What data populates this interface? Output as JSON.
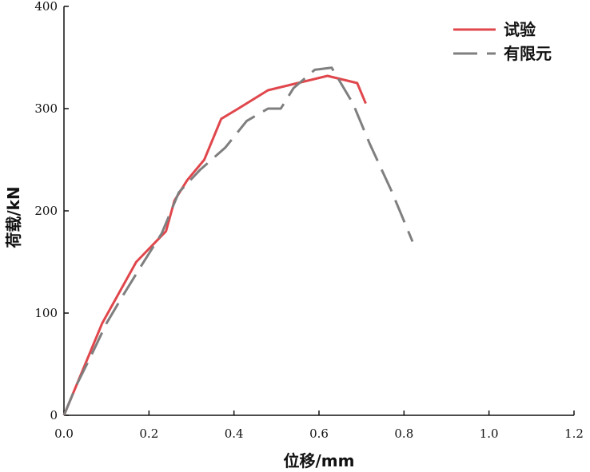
{
  "chart_data": {
    "type": "line",
    "xlabel": "位移/mm",
    "ylabel": "荷载/kN",
    "xlim": [
      0,
      1.2
    ],
    "ylim": [
      0,
      400
    ],
    "xticks": [
      0.0,
      0.2,
      0.4,
      0.6,
      0.8,
      1.0,
      1.2
    ],
    "xtick_labels": [
      "0.0",
      "0.2",
      "0.4",
      "0.6",
      "0.8",
      "1.0",
      "1.2"
    ],
    "yticks": [
      0,
      100,
      200,
      300,
      400
    ],
    "ytick_labels": [
      "0",
      "100",
      "200",
      "300",
      "400"
    ],
    "grid": false,
    "legend_position": "top-right",
    "series": [
      {
        "name": "试验",
        "color": "#e0474c",
        "style": "solid",
        "x": [
          0.0,
          0.05,
          0.09,
          0.17,
          0.24,
          0.26,
          0.29,
          0.33,
          0.37,
          0.41,
          0.48,
          0.55,
          0.62,
          0.69,
          0.71
        ],
        "y": [
          0,
          50,
          90,
          150,
          180,
          210,
          230,
          250,
          290,
          300,
          318,
          325,
          332,
          325,
          305
        ]
      },
      {
        "name": "有限元",
        "color": "#7f7f7f",
        "style": "dashed",
        "x": [
          0.0,
          0.03,
          0.06,
          0.1,
          0.14,
          0.18,
          0.23,
          0.27,
          0.32,
          0.38,
          0.43,
          0.48,
          0.51,
          0.54,
          0.59,
          0.63,
          0.68,
          0.72,
          0.77,
          0.82
        ],
        "y": [
          0,
          30,
          55,
          90,
          118,
          145,
          178,
          218,
          240,
          262,
          288,
          300,
          300,
          320,
          338,
          340,
          305,
          265,
          220,
          170
        ]
      }
    ]
  }
}
